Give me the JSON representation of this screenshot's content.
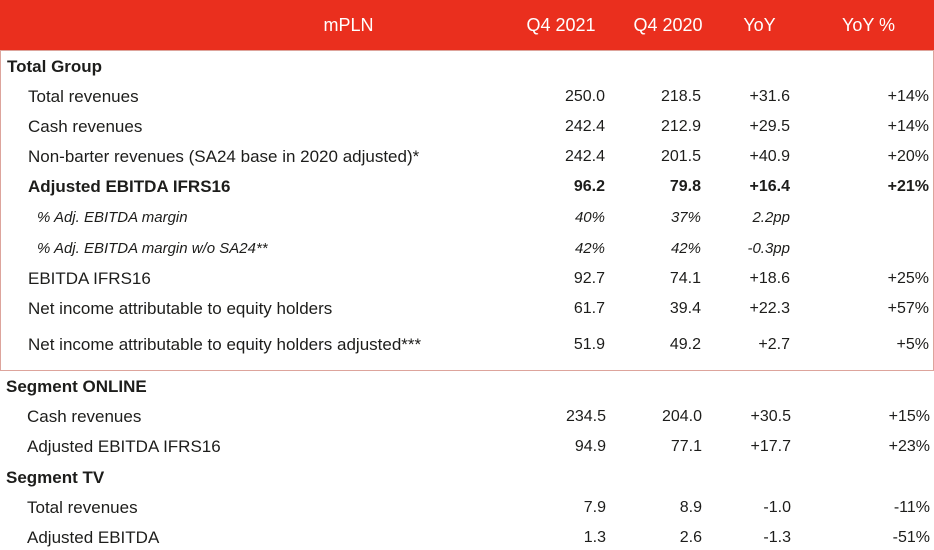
{
  "colors": {
    "header_bg": "#ea2f1e",
    "header_text": "#ffffff",
    "box_border": "#dda49c",
    "text": "#1d1d1b"
  },
  "header": {
    "unit_label": "mPLN",
    "columns": [
      "Q4 2021",
      "Q4 2020",
      "YoY",
      "YoY %"
    ]
  },
  "chart_data": {
    "type": "table",
    "title": "mPLN quarterly results",
    "columns": [
      "mPLN",
      "Q4 2021",
      "Q4 2020",
      "YoY",
      "YoY %"
    ]
  },
  "sections": [
    {
      "title": "Total Group",
      "boxed": true,
      "rows": [
        {
          "label": "Total revenues",
          "q4_2021": "250.0",
          "q4_2020": "218.5",
          "yoy": "+31.6",
          "yoy_pct": "+14%",
          "style": "normal"
        },
        {
          "label": "Cash revenues",
          "q4_2021": "242.4",
          "q4_2020": "212.9",
          "yoy": "+29.5",
          "yoy_pct": "+14%",
          "style": "normal"
        },
        {
          "label": "Non-barter revenues (SA24 base in 2020 adjusted)*",
          "q4_2021": "242.4",
          "q4_2020": "201.5",
          "yoy": "+40.9",
          "yoy_pct": "+20%",
          "style": "normal"
        },
        {
          "label": "Adjusted EBITDA IFRS16",
          "q4_2021": "96.2",
          "q4_2020": "79.8",
          "yoy": "+16.4",
          "yoy_pct": "+21%",
          "style": "bold"
        },
        {
          "label": "% Adj. EBITDA margin",
          "q4_2021": "40%",
          "q4_2020": "37%",
          "yoy": "2.2pp",
          "yoy_pct": "",
          "style": "italic"
        },
        {
          "label": "% Adj. EBITDA margin w/o SA24**",
          "q4_2021": "42%",
          "q4_2020": "42%",
          "yoy": "-0.3pp",
          "yoy_pct": "",
          "style": "italic"
        },
        {
          "label": "EBITDA  IFRS16",
          "q4_2021": "92.7",
          "q4_2020": "74.1",
          "yoy": "+18.6",
          "yoy_pct": "+25%",
          "style": "normal"
        },
        {
          "label": "Net income attributable to equity holders",
          "q4_2021": "61.7",
          "q4_2020": "39.4",
          "yoy": "+22.3",
          "yoy_pct": "+57%",
          "style": "normal"
        },
        {
          "label": "Net income attributable to equity holders adjusted***",
          "q4_2021": "51.9",
          "q4_2020": "49.2",
          "yoy": "+2.7",
          "yoy_pct": "+5%",
          "style": "normal",
          "spaced": true
        }
      ]
    },
    {
      "title": "Segment ONLINE",
      "boxed": false,
      "rows": [
        {
          "label": "Cash revenues",
          "q4_2021": "234.5",
          "q4_2020": "204.0",
          "yoy": "+30.5",
          "yoy_pct": "+15%",
          "style": "normal"
        },
        {
          "label": "Adjusted EBITDA IFRS16",
          "q4_2021": "94.9",
          "q4_2020": "77.1",
          "yoy": "+17.7",
          "yoy_pct": "+23%",
          "style": "normal"
        }
      ]
    },
    {
      "title": "Segment TV",
      "boxed": false,
      "rows": [
        {
          "label": "Total revenues",
          "q4_2021": "7.9",
          "q4_2020": "8.9",
          "yoy": "-1.0",
          "yoy_pct": "-11%",
          "style": "normal"
        },
        {
          "label": "Adjusted EBITDA",
          "q4_2021": "1.3",
          "q4_2020": "2.6",
          "yoy": "-1.3",
          "yoy_pct": "-51%",
          "style": "normal"
        }
      ]
    }
  ]
}
